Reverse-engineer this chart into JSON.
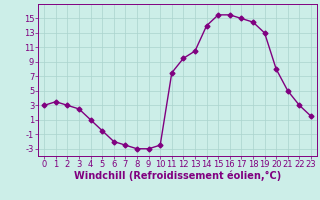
{
  "x": [
    0,
    1,
    2,
    3,
    4,
    5,
    6,
    7,
    8,
    9,
    10,
    11,
    12,
    13,
    14,
    15,
    16,
    17,
    18,
    19,
    20,
    21,
    22,
    23
  ],
  "y": [
    3,
    3.5,
    3,
    2.5,
    1,
    -0.5,
    -2,
    -2.5,
    -3,
    -3,
    -2.5,
    7.5,
    9.5,
    10.5,
    14,
    15.5,
    15.5,
    15,
    14.5,
    13,
    8,
    5,
    3,
    1.5
  ],
  "line_color": "#800080",
  "marker": "D",
  "marker_size": 2.5,
  "bg_color": "#cceee8",
  "grid_color": "#aad4ce",
  "xlabel": "Windchill (Refroidissement éolien,°C)",
  "xlabel_color": "#800080",
  "xlabel_fontsize": 7,
  "yticks": [
    -3,
    -1,
    1,
    3,
    5,
    7,
    9,
    11,
    13,
    15
  ],
  "xticks": [
    0,
    1,
    2,
    3,
    4,
    5,
    6,
    7,
    8,
    9,
    10,
    11,
    12,
    13,
    14,
    15,
    16,
    17,
    18,
    19,
    20,
    21,
    22,
    23
  ],
  "ylim": [
    -4,
    17
  ],
  "xlim": [
    -0.5,
    23.5
  ],
  "tick_color": "#800080",
  "tick_fontsize": 6,
  "spine_color": "#800080"
}
